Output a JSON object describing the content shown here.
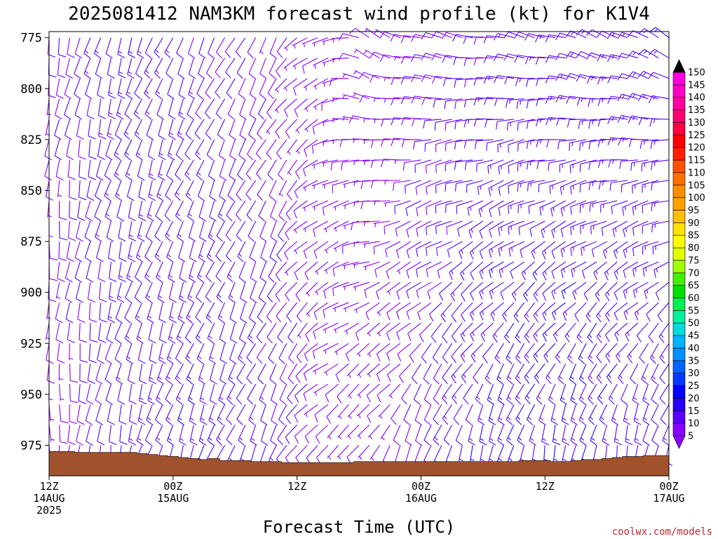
{
  "chart_data": {
    "type": "wind-barb time-height",
    "title": "2025081412 NAM3KM forecast wind profile (kt) for K1V4",
    "xlabel": "Forecast Time (UTC)",
    "ylabel": "",
    "units": "kt",
    "y_axis": {
      "ticks": [
        "775",
        "800",
        "825",
        "850",
        "875",
        "900",
        "925",
        "950",
        "975"
      ],
      "ylim": [
        772,
        990
      ],
      "inverted": true
    },
    "x_axis": {
      "ticks": [
        {
          "hour": 0,
          "line1": "12Z",
          "line2": "14AUG",
          "line3": "2025"
        },
        {
          "hour": 12,
          "line1": "00Z",
          "line2": "15AUG",
          "line3": ""
        },
        {
          "hour": 24,
          "line1": "12Z",
          "line2": "",
          "line3": ""
        },
        {
          "hour": 36,
          "line1": "00Z",
          "line2": "16AUG",
          "line3": ""
        },
        {
          "hour": 48,
          "line1": "12Z",
          "line2": "",
          "line3": ""
        },
        {
          "hour": 60,
          "line1": "00Z",
          "line2": "17AUG",
          "line3": ""
        }
      ],
      "xlim": [
        0,
        60
      ],
      "step_hours": 1
    },
    "levels_hpa": [
      775,
      785,
      795,
      805,
      815,
      825,
      835,
      845,
      855,
      865,
      875,
      885,
      895,
      905,
      915,
      925,
      935,
      945,
      955,
      965,
      975,
      985
    ],
    "surface_pressure_hpa": [
      978,
      978,
      978,
      978.5,
      978.5,
      978.5,
      978.5,
      978.5,
      978.5,
      979,
      979.5,
      980,
      980.5,
      981,
      981.5,
      982,
      981.5,
      982.5,
      982.5,
      982.5,
      983,
      983,
      983,
      983.5,
      983.5,
      983.5,
      983.5,
      983.5,
      983.5,
      983.5,
      983,
      983,
      983,
      983,
      983,
      983,
      983,
      983,
      983,
      983,
      983,
      983,
      983,
      983,
      983,
      983,
      982.5,
      982.5,
      982.5,
      983,
      983,
      982.5,
      982,
      982,
      981.5,
      981,
      980.5,
      980.5,
      980,
      980,
      980
    ],
    "wind_keyframes": {
      "note": "direction (deg, from) and speed (kt) at keyframe hours; barbs drawn hourly at each level",
      "hours": [
        0,
        8,
        14,
        22,
        27,
        31,
        36,
        44,
        52,
        60
      ],
      "dir_upper": [
        190,
        200,
        205,
        210,
        250,
        300,
        285,
        280,
        290,
        300
      ],
      "dir_lower": [
        180,
        195,
        200,
        205,
        230,
        210,
        195,
        190,
        185,
        185
      ],
      "spd_upper": [
        9,
        14,
        11,
        8,
        6,
        7,
        9,
        11,
        12,
        14
      ],
      "spd_lower": [
        7,
        12,
        15,
        12,
        8,
        6,
        10,
        16,
        15,
        12
      ]
    },
    "colorbar": {
      "values": [
        5,
        10,
        15,
        20,
        25,
        30,
        35,
        40,
        45,
        50,
        55,
        60,
        65,
        70,
        75,
        80,
        85,
        90,
        95,
        100,
        105,
        110,
        115,
        120,
        125,
        130,
        135,
        140,
        145,
        150
      ],
      "colors": [
        "#8800ff",
        "#5a00ff",
        "#2800ff",
        "#0000ff",
        "#0038ff",
        "#0064ff",
        "#0090ff",
        "#00b4ff",
        "#00dcdc",
        "#00f0a0",
        "#00f050",
        "#00e000",
        "#40f000",
        "#a0ff00",
        "#e0ff00",
        "#ffff00",
        "#ffe000",
        "#ffc000",
        "#ffa000",
        "#ff8c00",
        "#ff7000",
        "#ff5000",
        "#ff2000",
        "#ff0000",
        "#ff0040",
        "#ff0070",
        "#ff00a0",
        "#ff00c8",
        "#ff00e0",
        "#ff00ff"
      ],
      "over_color": "#000000",
      "under_color": "#8800ff"
    },
    "ground_color": "#a0522d",
    "grid": false
  },
  "credit": "coolwx.com/models"
}
